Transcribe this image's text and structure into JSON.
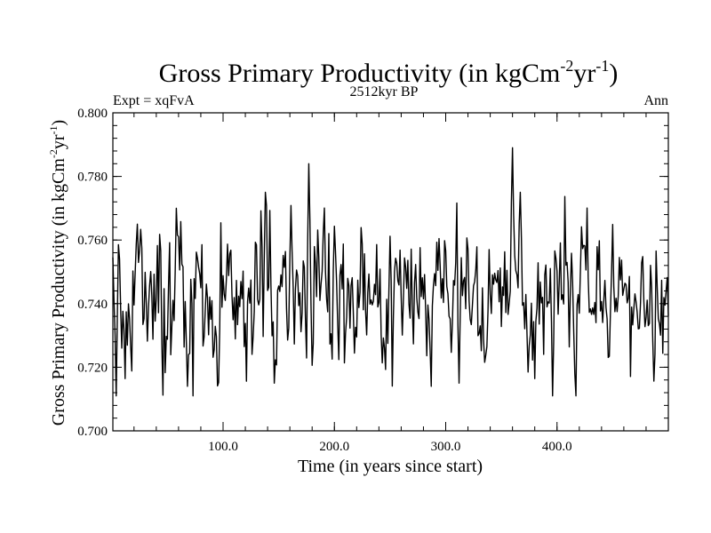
{
  "chart_data": {
    "type": "line",
    "title_main": "Gross Primary Productivity (in kgCm",
    "title_sup1": "-2",
    "title_mid": "yr",
    "title_sup2": "-1",
    "title_end": ")",
    "subtitle_left": "Expt = xqFvA",
    "subtitle_center": "2512kyr BP",
    "subtitle_right": "Ann",
    "xlabel": "Time (in years since start)",
    "ylabel_main": "Gross Primary Productivity (in kgCm",
    "ylabel_sup1": "-2",
    "ylabel_mid": "yr",
    "ylabel_sup2": "-1",
    "ylabel_end": ")",
    "xlim": [
      1,
      500
    ],
    "ylim": [
      0.7,
      0.8
    ],
    "xticks": [
      100,
      200,
      300,
      400
    ],
    "xtick_labels": [
      "100.0",
      "200.0",
      "300.0",
      "400.0"
    ],
    "yticks": [
      0.7,
      0.72,
      0.74,
      0.76,
      0.78,
      0.8
    ],
    "ytick_labels": [
      "0.700",
      "0.720",
      "0.740",
      "0.760",
      "0.780",
      "0.800"
    ],
    "series": [
      {
        "name": "Ann",
        "generator": {
          "n": 500,
          "x_start": 1,
          "x_step": 1,
          "seed": 2512,
          "mean": 0.741,
          "std": 0.0115,
          "min": 0.711,
          "max": 0.789,
          "noted_peaks": [
            {
              "x": 4,
              "y": 0.711
            },
            {
              "x": 58,
              "y": 0.77
            },
            {
              "x": 68,
              "y": 0.714
            },
            {
              "x": 138,
              "y": 0.775
            },
            {
              "x": 146,
              "y": 0.715
            },
            {
              "x": 177,
              "y": 0.784
            },
            {
              "x": 287,
              "y": 0.714
            },
            {
              "x": 312,
              "y": 0.715
            },
            {
              "x": 360,
              "y": 0.789
            },
            {
              "x": 367,
              "y": 0.775
            }
          ]
        }
      }
    ]
  }
}
